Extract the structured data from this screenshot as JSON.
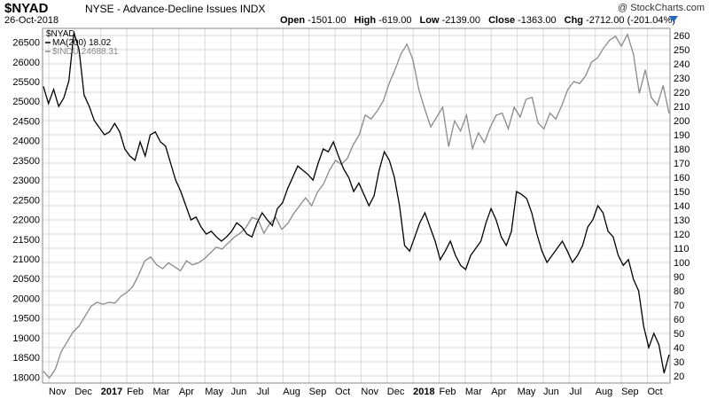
{
  "header": {
    "symbol": "$NYAD",
    "description": "NYSE - Advance-Decline Issues INDX",
    "date": "26-Oct-2018",
    "credit": "@ StockCharts.com",
    "quote": [
      {
        "label": "Open",
        "value": "-1501.00"
      },
      {
        "label": "High",
        "value": "-619.00"
      },
      {
        "label": "Low",
        "value": "-2139.00"
      },
      {
        "label": "Close",
        "value": "-1363.00"
      },
      {
        "label": "Chg",
        "value": "-2712.00 (-201.04%)"
      }
    ]
  },
  "colors": {
    "background": "#ffffff",
    "grid": "#d9d9d9",
    "indu": "#8a8a8a",
    "nyad": "#000000",
    "caret": "#2266cc"
  },
  "chart_data": {
    "type": "line",
    "x_ticks": [
      "Nov",
      "Dec",
      "2017",
      "Feb",
      "Mar",
      "Apr",
      "May",
      "Jun",
      "Jul",
      "Aug",
      "Sep",
      "Oct",
      "Nov",
      "Dec",
      "2018",
      "Feb",
      "Mar",
      "Apr",
      "May",
      "Jun",
      "Jul",
      "Aug",
      "Sep",
      "Oct"
    ],
    "left_axis": {
      "ticks": [
        18000,
        18500,
        19000,
        19500,
        20000,
        20500,
        21000,
        21500,
        22000,
        22500,
        23000,
        23500,
        24000,
        24500,
        25000,
        25500,
        26000,
        26500
      ],
      "range": [
        17850,
        26850
      ]
    },
    "right_axis": {
      "ticks": [
        20,
        30,
        40,
        50,
        60,
        70,
        80,
        90,
        100,
        110,
        120,
        130,
        140,
        150,
        160,
        170,
        180,
        190,
        200,
        210,
        220,
        230,
        240,
        250,
        260
      ],
      "range": [
        15,
        265
      ]
    },
    "legend": [
      {
        "label": "$NYAD",
        "color": "#000000"
      },
      {
        "label": "MA(200) 18.02",
        "color": "#000000"
      },
      {
        "label": "$INDU 24688.31",
        "color": "#8a8a8a"
      }
    ],
    "series": [
      {
        "name": "$NYAD",
        "axis": "right",
        "values": [
          224,
          212,
          222,
          210,
          216,
          228,
          262,
          250,
          218,
          210,
          200,
          195,
          190,
          192,
          198,
          192,
          180,
          175,
          172,
          185,
          175,
          190,
          192,
          185,
          182,
          170,
          158,
          150,
          140,
          130,
          132,
          125,
          120,
          122,
          118,
          115,
          118,
          122,
          128,
          125,
          120,
          118,
          128,
          135,
          130,
          126,
          138,
          142,
          152,
          160,
          168,
          165,
          162,
          158,
          170,
          180,
          178,
          185,
          175,
          166,
          160,
          150,
          156,
          148,
          140,
          147,
          165,
          178,
          172,
          160,
          140,
          112,
          108,
          118,
          128,
          135,
          125,
          115,
          102,
          108,
          115,
          105,
          98,
          95,
          105,
          110,
          115,
          128,
          138,
          130,
          118,
          112,
          122,
          150,
          148,
          145,
          135,
          120,
          108,
          100,
          105,
          110,
          115,
          108,
          100,
          105,
          112,
          125,
          130,
          140,
          135,
          122,
          118,
          105,
          98,
          102,
          88,
          80,
          55,
          40,
          50,
          42,
          22,
          35
        ]
      },
      {
        "name": "$INDU",
        "axis": "left",
        "values": [
          18150,
          17980,
          18200,
          18650,
          18900,
          19150,
          19300,
          19550,
          19800,
          19900,
          19850,
          19900,
          19880,
          20050,
          20150,
          20300,
          20600,
          20950,
          21050,
          20850,
          20750,
          20900,
          20800,
          20700,
          20950,
          20850,
          20900,
          21000,
          21150,
          21300,
          21250,
          21400,
          21550,
          21650,
          21800,
          22050,
          22000,
          21650,
          21900,
          22050,
          21750,
          21900,
          22150,
          22350,
          22550,
          22350,
          22700,
          22900,
          23250,
          23500,
          23400,
          23550,
          23900,
          24150,
          24650,
          24550,
          24750,
          25000,
          25450,
          25800,
          26200,
          26450,
          26050,
          25300,
          24800,
          24350,
          24600,
          24850,
          23850,
          24500,
          24250,
          24650,
          23800,
          24200,
          23950,
          24350,
          24650,
          24700,
          24300,
          24850,
          24600,
          25050,
          25100,
          24450,
          24300,
          24700,
          24550,
          24900,
          25300,
          25500,
          25450,
          25650,
          26000,
          26100,
          26350,
          26550,
          26650,
          26400,
          26700,
          26200,
          25200,
          25800,
          25100,
          24900,
          25400,
          24688
        ]
      }
    ]
  }
}
